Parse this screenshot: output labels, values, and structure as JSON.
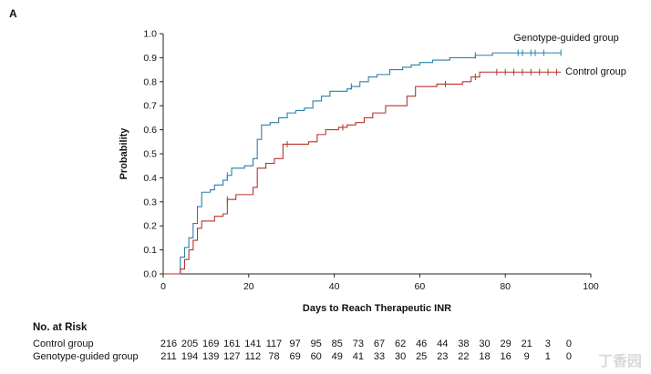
{
  "panel_label": "A",
  "watermark": "丁香园",
  "risk_table": {
    "title": "No. at Risk",
    "rows": [
      {
        "name": "Control group",
        "values": [
          "216",
          "205",
          "169",
          "161",
          "141",
          "117",
          "97",
          "95",
          "85",
          "73",
          "67",
          "62",
          "46",
          "44",
          "38",
          "30",
          "29",
          "21",
          "3",
          "0"
        ]
      },
      {
        "name": "Genotype-guided group",
        "values": [
          "211",
          "194",
          "139",
          "127",
          "112",
          "78",
          "69",
          "60",
          "49",
          "41",
          "33",
          "30",
          "25",
          "23",
          "22",
          "18",
          "16",
          "9",
          "1",
          "0"
        ]
      }
    ]
  },
  "chart_data": {
    "type": "line",
    "subtype": "kaplan-meier-step",
    "xlabel": "Days to Reach Therapeutic INR",
    "ylabel": "Probability",
    "xlim": [
      0,
      100
    ],
    "ylim": [
      0,
      1.0
    ],
    "xticks": [
      0,
      20,
      40,
      60,
      80,
      100
    ],
    "yticks": [
      0.0,
      0.1,
      0.2,
      0.3,
      0.4,
      0.5,
      0.6,
      0.7,
      0.8,
      0.9,
      1.0
    ],
    "grid": false,
    "legend": "inline labels at right end of curves",
    "series": [
      {
        "name": "Genotype-guided group",
        "color": "#2a7fa8",
        "steps": [
          [
            0,
            0
          ],
          [
            4,
            0
          ],
          [
            4,
            0.07
          ],
          [
            5,
            0.11
          ],
          [
            6,
            0.15
          ],
          [
            7,
            0.21
          ],
          [
            8,
            0.28
          ],
          [
            9,
            0.34
          ],
          [
            11,
            0.35
          ],
          [
            12,
            0.37
          ],
          [
            14,
            0.39
          ],
          [
            15,
            0.41
          ],
          [
            16,
            0.44
          ],
          [
            19,
            0.45
          ],
          [
            21,
            0.48
          ],
          [
            22,
            0.56
          ],
          [
            23,
            0.62
          ],
          [
            25,
            0.63
          ],
          [
            27,
            0.65
          ],
          [
            29,
            0.67
          ],
          [
            31,
            0.68
          ],
          [
            33,
            0.69
          ],
          [
            35,
            0.72
          ],
          [
            37,
            0.74
          ],
          [
            39,
            0.76
          ],
          [
            43,
            0.77
          ],
          [
            44,
            0.78
          ],
          [
            46,
            0.8
          ],
          [
            48,
            0.82
          ],
          [
            50,
            0.83
          ],
          [
            53,
            0.85
          ],
          [
            56,
            0.86
          ],
          [
            58,
            0.87
          ],
          [
            60,
            0.88
          ],
          [
            63,
            0.89
          ],
          [
            67,
            0.9
          ],
          [
            73,
            0.91
          ],
          [
            77,
            0.92
          ],
          [
            93,
            0.92
          ]
        ],
        "censor_x": [
          15,
          44,
          73,
          83,
          84,
          86,
          87,
          89,
          93
        ]
      },
      {
        "name": "Control group",
        "color": "#b5352b",
        "steps": [
          [
            0,
            0
          ],
          [
            4,
            0
          ],
          [
            4,
            0.02
          ],
          [
            5,
            0.06
          ],
          [
            6,
            0.1
          ],
          [
            7,
            0.14
          ],
          [
            8,
            0.19
          ],
          [
            9,
            0.22
          ],
          [
            12,
            0.24
          ],
          [
            14,
            0.25
          ],
          [
            15,
            0.31
          ],
          [
            17,
            0.33
          ],
          [
            21,
            0.36
          ],
          [
            22,
            0.44
          ],
          [
            24,
            0.46
          ],
          [
            26,
            0.48
          ],
          [
            28,
            0.54
          ],
          [
            29,
            0.54
          ],
          [
            34,
            0.55
          ],
          [
            36,
            0.58
          ],
          [
            38,
            0.6
          ],
          [
            41,
            0.61
          ],
          [
            43,
            0.62
          ],
          [
            45,
            0.63
          ],
          [
            47,
            0.65
          ],
          [
            49,
            0.67
          ],
          [
            52,
            0.7
          ],
          [
            57,
            0.74
          ],
          [
            59,
            0.78
          ],
          [
            64,
            0.79
          ],
          [
            70,
            0.8
          ],
          [
            72,
            0.82
          ],
          [
            74,
            0.84
          ],
          [
            93,
            0.84
          ]
        ],
        "censor_x": [
          15,
          29,
          42,
          66,
          73,
          78,
          80,
          82,
          84,
          86,
          88,
          90,
          92
        ]
      }
    ]
  }
}
